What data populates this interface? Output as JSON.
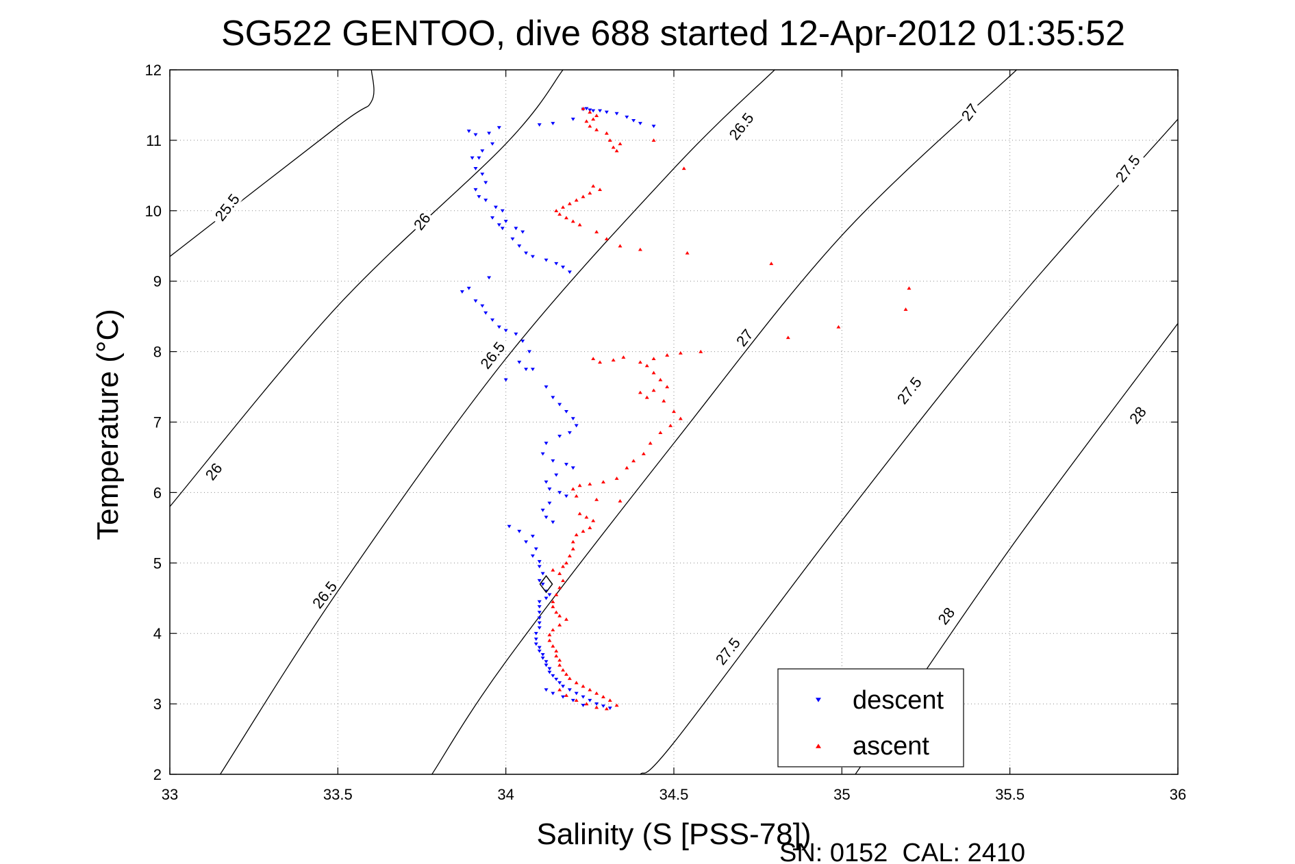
{
  "chart_data": {
    "type": "scatter",
    "title": "SG522 GENTOO, dive 688 started 12-Apr-2012 01:35:52",
    "xlabel": "Salinity (S [PSS-78])",
    "ylabel": "Temperature (°C)",
    "xlim": [
      33,
      36
    ],
    "ylim": [
      2,
      12
    ],
    "xticks": [
      "33",
      "33.5",
      "34",
      "34.5",
      "35",
      "35.5",
      "36"
    ],
    "yticks": [
      "2",
      "3",
      "4",
      "5",
      "6",
      "7",
      "8",
      "9",
      "10",
      "11",
      "12"
    ],
    "grid": "dotted",
    "legend_position": "lower-right",
    "footer": "SN: 0152  CAL: 2410",
    "density_contours": [
      {
        "sigma": 25.5,
        "label": "25.5",
        "points": [
          [
            33.0,
            9.35
          ],
          [
            33.5,
            11.2
          ],
          [
            33.6,
            11.55
          ],
          [
            33.6,
            12.0
          ]
        ]
      },
      {
        "sigma": 26.0,
        "label": "26",
        "points": [
          [
            33.0,
            5.8
          ],
          [
            33.5,
            8.65
          ],
          [
            34.0,
            10.95
          ],
          [
            34.17,
            12.0
          ]
        ]
      },
      {
        "sigma": 26.5,
        "label": "26.5",
        "points": [
          [
            33.15,
            2.0
          ],
          [
            33.5,
            4.6
          ],
          [
            34.0,
            7.9
          ],
          [
            34.5,
            10.6
          ],
          [
            34.8,
            12.0
          ]
        ]
      },
      {
        "sigma": 27.0,
        "label": "27",
        "points": [
          [
            33.78,
            2.0
          ],
          [
            34.0,
            3.6
          ],
          [
            34.5,
            6.7
          ],
          [
            35.0,
            9.65
          ],
          [
            35.52,
            12.0
          ]
        ]
      },
      {
        "sigma": 27.5,
        "label": "27.5",
        "points": [
          [
            34.4,
            2.0
          ],
          [
            34.5,
            2.45
          ],
          [
            35.0,
            5.6
          ],
          [
            35.5,
            8.6
          ],
          [
            36.0,
            11.3
          ]
        ]
      },
      {
        "sigma": 28.0,
        "label": "28",
        "points": [
          [
            35.04,
            2.0
          ],
          [
            35.5,
            5.2
          ],
          [
            36.0,
            8.4
          ]
        ]
      }
    ],
    "contour_labels": [
      {
        "text": "25.5",
        "x": 33.17,
        "y": 10.05
      },
      {
        "text": "26",
        "x": 33.75,
        "y": 9.85
      },
      {
        "text": "26",
        "x": 33.13,
        "y": 6.3
      },
      {
        "text": "26.5",
        "x": 33.96,
        "y": 7.95
      },
      {
        "text": "26.5",
        "x": 34.7,
        "y": 11.2
      },
      {
        "text": "26.5",
        "x": 33.46,
        "y": 4.55
      },
      {
        "text": "27",
        "x": 35.38,
        "y": 11.4
      },
      {
        "text": "27",
        "x": 34.71,
        "y": 8.2
      },
      {
        "text": "27.5",
        "x": 34.66,
        "y": 3.75
      },
      {
        "text": "27.5",
        "x": 35.2,
        "y": 7.45
      },
      {
        "text": "27.5",
        "x": 35.85,
        "y": 10.6
      },
      {
        "text": "28",
        "x": 35.31,
        "y": 4.25
      },
      {
        "text": "28",
        "x": 35.88,
        "y": 7.1
      }
    ],
    "series": [
      {
        "name": "descent",
        "marker": "triangle-down",
        "color": "#0000ff",
        "points": [
          [
            34.24,
            11.45
          ],
          [
            34.25,
            11.43
          ],
          [
            34.26,
            11.42
          ],
          [
            34.28,
            11.42
          ],
          [
            34.3,
            11.4
          ],
          [
            34.33,
            11.38
          ],
          [
            34.36,
            11.33
          ],
          [
            34.38,
            11.28
          ],
          [
            34.4,
            11.24
          ],
          [
            34.44,
            11.2
          ],
          [
            34.2,
            11.3
          ],
          [
            34.23,
            11.44
          ],
          [
            34.1,
            11.22
          ],
          [
            34.14,
            11.24
          ],
          [
            33.89,
            11.13
          ],
          [
            33.91,
            11.08
          ],
          [
            33.95,
            11.1
          ],
          [
            33.98,
            11.18
          ],
          [
            33.96,
            10.95
          ],
          [
            33.93,
            10.85
          ],
          [
            33.92,
            10.75
          ],
          [
            33.9,
            10.75
          ],
          [
            33.91,
            10.6
          ],
          [
            33.93,
            10.52
          ],
          [
            33.94,
            10.4
          ],
          [
            33.91,
            10.3
          ],
          [
            33.92,
            10.2
          ],
          [
            33.94,
            10.15
          ],
          [
            33.97,
            10.05
          ],
          [
            33.99,
            10.0
          ],
          [
            33.96,
            9.9
          ],
          [
            33.98,
            9.8
          ],
          [
            34.0,
            9.85
          ],
          [
            34.03,
            9.75
          ],
          [
            34.05,
            9.7
          ],
          [
            33.99,
            9.75
          ],
          [
            34.02,
            9.6
          ],
          [
            34.04,
            9.5
          ],
          [
            34.06,
            9.4
          ],
          [
            34.08,
            9.35
          ],
          [
            34.12,
            9.3
          ],
          [
            34.15,
            9.25
          ],
          [
            34.17,
            9.2
          ],
          [
            34.19,
            9.13
          ],
          [
            33.95,
            9.05
          ],
          [
            33.89,
            8.9
          ],
          [
            33.87,
            8.85
          ],
          [
            33.91,
            8.72
          ],
          [
            33.93,
            8.65
          ],
          [
            33.94,
            8.55
          ],
          [
            33.96,
            8.45
          ],
          [
            33.98,
            8.35
          ],
          [
            34.0,
            8.3
          ],
          [
            34.03,
            8.25
          ],
          [
            34.05,
            8.15
          ],
          [
            34.07,
            8.0
          ],
          [
            34.04,
            7.85
          ],
          [
            34.06,
            7.75
          ],
          [
            34.08,
            7.75
          ],
          [
            34.0,
            7.6
          ],
          [
            34.12,
            7.5
          ],
          [
            34.14,
            7.35
          ],
          [
            34.16,
            7.25
          ],
          [
            34.18,
            7.15
          ],
          [
            34.2,
            7.05
          ],
          [
            34.21,
            6.95
          ],
          [
            34.19,
            6.85
          ],
          [
            34.16,
            6.8
          ],
          [
            34.12,
            6.7
          ],
          [
            34.11,
            6.55
          ],
          [
            34.14,
            6.45
          ],
          [
            34.18,
            6.4
          ],
          [
            34.2,
            6.35
          ],
          [
            34.15,
            6.25
          ],
          [
            34.12,
            6.15
          ],
          [
            34.13,
            6.05
          ],
          [
            34.16,
            6.0
          ],
          [
            34.18,
            5.95
          ],
          [
            34.13,
            5.85
          ],
          [
            34.11,
            5.75
          ],
          [
            34.12,
            5.65
          ],
          [
            34.14,
            5.58
          ],
          [
            34.01,
            5.52
          ],
          [
            34.04,
            5.45
          ],
          [
            34.08,
            5.38
          ],
          [
            34.06,
            5.3
          ],
          [
            34.09,
            5.2
          ],
          [
            34.08,
            5.1
          ],
          [
            34.1,
            5.02
          ],
          [
            34.1,
            4.95
          ],
          [
            34.11,
            4.85
          ],
          [
            34.1,
            4.75
          ],
          [
            34.11,
            4.7
          ],
          [
            34.12,
            4.6
          ],
          [
            34.13,
            4.55
          ],
          [
            34.12,
            4.5
          ],
          [
            34.1,
            4.45
          ],
          [
            34.1,
            4.38
          ],
          [
            34.1,
            4.3
          ],
          [
            34.1,
            4.22
          ],
          [
            34.1,
            4.15
          ],
          [
            34.1,
            4.08
          ],
          [
            34.09,
            4.0
          ],
          [
            34.09,
            3.92
          ],
          [
            34.09,
            3.85
          ],
          [
            34.1,
            3.8
          ],
          [
            34.1,
            3.75
          ],
          [
            34.11,
            3.7
          ],
          [
            34.11,
            3.65
          ],
          [
            34.12,
            3.6
          ],
          [
            34.12,
            3.55
          ],
          [
            34.13,
            3.5
          ],
          [
            34.13,
            3.45
          ],
          [
            34.14,
            3.4
          ],
          [
            34.15,
            3.35
          ],
          [
            34.16,
            3.3
          ],
          [
            34.17,
            3.25
          ],
          [
            34.19,
            3.2
          ],
          [
            34.21,
            3.15
          ],
          [
            34.23,
            3.1
          ],
          [
            34.25,
            3.05
          ],
          [
            34.27,
            3.0
          ],
          [
            34.29,
            2.97
          ],
          [
            34.31,
            2.94
          ],
          [
            34.12,
            3.2
          ],
          [
            34.14,
            3.15
          ],
          [
            34.17,
            3.1
          ],
          [
            34.2,
            3.05
          ],
          [
            34.23,
            2.98
          ]
        ]
      },
      {
        "name": "ascent",
        "marker": "triangle-up",
        "color": "#ff0000",
        "points": [
          [
            34.23,
            11.45
          ],
          [
            34.25,
            11.4
          ],
          [
            34.27,
            11.35
          ],
          [
            34.26,
            11.3
          ],
          [
            34.24,
            11.27
          ],
          [
            34.25,
            11.2
          ],
          [
            34.27,
            11.15
          ],
          [
            34.3,
            11.1
          ],
          [
            34.31,
            11.0
          ],
          [
            34.32,
            10.9
          ],
          [
            34.33,
            10.85
          ],
          [
            34.34,
            10.95
          ],
          [
            34.44,
            11.0
          ],
          [
            34.53,
            10.6
          ],
          [
            34.26,
            10.35
          ],
          [
            34.28,
            10.3
          ],
          [
            34.25,
            10.25
          ],
          [
            34.23,
            10.2
          ],
          [
            34.21,
            10.15
          ],
          [
            34.19,
            10.1
          ],
          [
            34.17,
            10.05
          ],
          [
            34.15,
            10.0
          ],
          [
            34.16,
            9.95
          ],
          [
            34.18,
            9.9
          ],
          [
            34.2,
            9.85
          ],
          [
            34.22,
            9.8
          ],
          [
            34.27,
            9.7
          ],
          [
            34.3,
            9.6
          ],
          [
            34.34,
            9.5
          ],
          [
            34.4,
            9.45
          ],
          [
            34.54,
            9.4
          ],
          [
            34.79,
            9.25
          ],
          [
            35.2,
            8.9
          ],
          [
            35.19,
            8.6
          ],
          [
            34.99,
            8.35
          ],
          [
            34.84,
            8.2
          ],
          [
            34.26,
            7.9
          ],
          [
            34.28,
            7.85
          ],
          [
            34.32,
            7.88
          ],
          [
            34.35,
            7.92
          ],
          [
            34.4,
            7.85
          ],
          [
            34.44,
            7.9
          ],
          [
            34.48,
            7.95
          ],
          [
            34.52,
            7.98
          ],
          [
            34.58,
            8.0
          ],
          [
            34.42,
            7.8
          ],
          [
            34.44,
            7.7
          ],
          [
            34.46,
            7.6
          ],
          [
            34.48,
            7.5
          ],
          [
            34.44,
            7.45
          ],
          [
            34.4,
            7.42
          ],
          [
            34.42,
            7.35
          ],
          [
            34.47,
            7.3
          ],
          [
            34.5,
            7.15
          ],
          [
            34.52,
            7.05
          ],
          [
            34.49,
            6.95
          ],
          [
            34.46,
            6.85
          ],
          [
            34.43,
            6.7
          ],
          [
            34.41,
            6.55
          ],
          [
            34.38,
            6.45
          ],
          [
            34.36,
            6.35
          ],
          [
            34.33,
            6.2
          ],
          [
            34.29,
            6.15
          ],
          [
            34.25,
            6.12
          ],
          [
            34.22,
            6.1
          ],
          [
            34.2,
            6.05
          ],
          [
            34.21,
            5.95
          ],
          [
            34.27,
            5.9
          ],
          [
            34.34,
            5.88
          ],
          [
            34.22,
            5.7
          ],
          [
            34.24,
            5.65
          ],
          [
            34.26,
            5.6
          ],
          [
            34.25,
            5.5
          ],
          [
            34.23,
            5.45
          ],
          [
            34.21,
            5.4
          ],
          [
            34.2,
            5.3
          ],
          [
            34.2,
            5.2
          ],
          [
            34.19,
            5.1
          ],
          [
            34.18,
            5.0
          ],
          [
            34.17,
            4.95
          ],
          [
            34.14,
            4.9
          ],
          [
            34.16,
            4.85
          ],
          [
            34.17,
            4.75
          ],
          [
            34.16,
            4.65
          ],
          [
            34.15,
            4.55
          ],
          [
            34.14,
            4.45
          ],
          [
            34.14,
            4.38
          ],
          [
            34.15,
            4.3
          ],
          [
            34.16,
            4.25
          ],
          [
            34.18,
            4.2
          ],
          [
            34.16,
            4.12
          ],
          [
            34.14,
            4.05
          ],
          [
            34.13,
            3.98
          ],
          [
            34.13,
            3.9
          ],
          [
            34.14,
            3.82
          ],
          [
            34.15,
            3.75
          ],
          [
            34.15,
            3.68
          ],
          [
            34.16,
            3.62
          ],
          [
            34.16,
            3.55
          ],
          [
            34.17,
            3.48
          ],
          [
            34.18,
            3.42
          ],
          [
            34.19,
            3.36
          ],
          [
            34.21,
            3.3
          ],
          [
            34.23,
            3.25
          ],
          [
            34.25,
            3.2
          ],
          [
            34.27,
            3.15
          ],
          [
            34.29,
            3.1
          ],
          [
            34.31,
            3.05
          ],
          [
            34.33,
            2.98
          ],
          [
            34.3,
            2.93
          ],
          [
            34.27,
            2.95
          ],
          [
            34.24,
            3.0
          ],
          [
            34.21,
            3.05
          ],
          [
            34.18,
            3.12
          ],
          [
            34.16,
            3.2
          ]
        ]
      }
    ],
    "special_marker": {
      "name": "dive start",
      "shape": "diamond",
      "x": 34.12,
      "y": 4.7
    }
  },
  "colors": {
    "descent": "#0000ff",
    "ascent": "#ff0000",
    "contour": "#000000",
    "grid": "#888888"
  }
}
